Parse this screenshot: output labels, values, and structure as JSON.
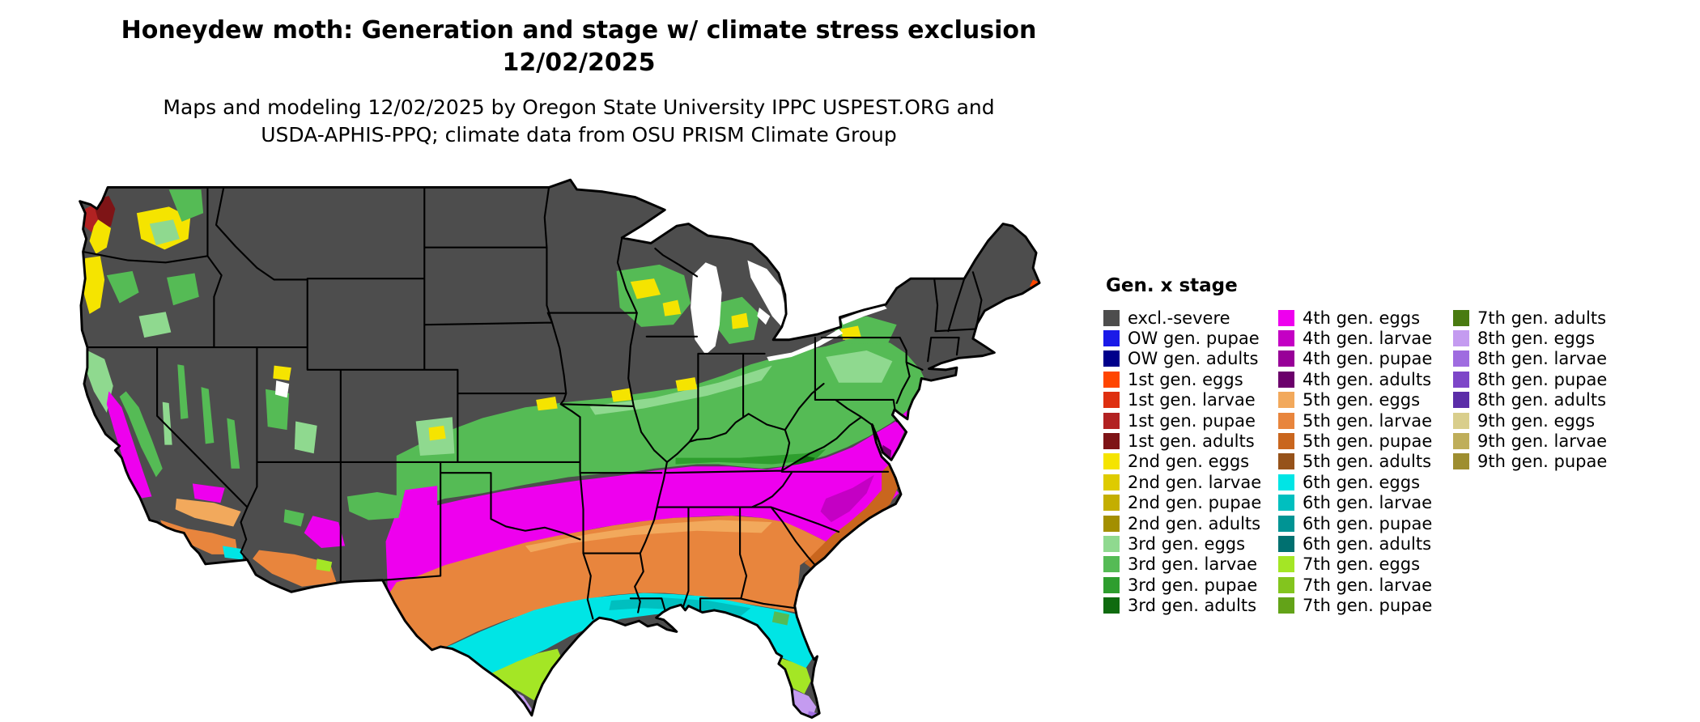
{
  "title": {
    "line1": "Honeydew moth: Generation and stage w/ climate stress exclusion",
    "line2": "12/02/2025"
  },
  "subtitle": {
    "line1": "Maps and modeling 12/02/2025 by Oregon State University IPPC USPEST.ORG and",
    "line2": "USDA-APHIS-PPQ; climate data from OSU PRISM Climate Group"
  },
  "legend": {
    "title": "Gen. x stage",
    "columns": [
      [
        {
          "key": "excl_severe",
          "label": "excl.-severe"
        },
        {
          "key": "ow_pupae",
          "label": "OW gen. pupae"
        },
        {
          "key": "ow_adults",
          "label": "OW gen. adults"
        },
        {
          "key": "gen1_eggs",
          "label": "1st gen. eggs"
        },
        {
          "key": "gen1_larvae",
          "label": "1st gen. larvae"
        },
        {
          "key": "gen1_pupae",
          "label": "1st gen. pupae"
        },
        {
          "key": "gen1_adults",
          "label": "1st gen. adults"
        },
        {
          "key": "gen2_eggs",
          "label": "2nd gen. eggs"
        },
        {
          "key": "gen2_larvae",
          "label": "2nd gen. larvae"
        },
        {
          "key": "gen2_pupae",
          "label": "2nd gen. pupae"
        },
        {
          "key": "gen2_adults",
          "label": "2nd gen. adults"
        },
        {
          "key": "gen3_eggs",
          "label": "3rd gen. eggs"
        },
        {
          "key": "gen3_larvae",
          "label": "3rd gen. larvae"
        },
        {
          "key": "gen3_pupae",
          "label": "3rd gen. pupae"
        },
        {
          "key": "gen3_adults",
          "label": "3rd gen. adults"
        }
      ],
      [
        {
          "key": "gen4_eggs",
          "label": "4th gen. eggs"
        },
        {
          "key": "gen4_larvae",
          "label": "4th gen. larvae"
        },
        {
          "key": "gen4_pupae",
          "label": "4th gen. pupae"
        },
        {
          "key": "gen4_adults",
          "label": "4th gen. adults"
        },
        {
          "key": "gen5_eggs",
          "label": "5th gen. eggs"
        },
        {
          "key": "gen5_larvae",
          "label": "5th gen. larvae"
        },
        {
          "key": "gen5_pupae",
          "label": "5th gen. pupae"
        },
        {
          "key": "gen5_adults",
          "label": "5th gen. adults"
        },
        {
          "key": "gen6_eggs",
          "label": "6th gen. eggs"
        },
        {
          "key": "gen6_larvae",
          "label": "6th gen. larvae"
        },
        {
          "key": "gen6_pupae",
          "label": "6th gen. pupae"
        },
        {
          "key": "gen6_adults",
          "label": "6th gen. adults"
        },
        {
          "key": "gen7_eggs",
          "label": "7th gen. eggs"
        },
        {
          "key": "gen7_larvae",
          "label": "7th gen. larvae"
        },
        {
          "key": "gen7_pupae",
          "label": "7th gen. pupae"
        }
      ],
      [
        {
          "key": "gen7_adults",
          "label": "7th gen. adults"
        },
        {
          "key": "gen8_eggs",
          "label": "8th gen. eggs"
        },
        {
          "key": "gen8_larvae",
          "label": "8th gen. larvae"
        },
        {
          "key": "gen8_pupae",
          "label": "8th gen. pupae"
        },
        {
          "key": "gen8_adults",
          "label": "8th gen. adults"
        },
        {
          "key": "gen9_eggs",
          "label": "9th gen. eggs"
        },
        {
          "key": "gen9_larvae",
          "label": "9th gen. larvae"
        },
        {
          "key": "gen9_pupae",
          "label": "9th gen. pupae"
        }
      ]
    ]
  },
  "palette": {
    "excl_severe": "#4D4D4D",
    "ow_pupae": "#1A1AE8",
    "ow_adults": "#00008B",
    "gen1_eggs": "#FF4500",
    "gen1_larvae": "#DE2F10",
    "gen1_pupae": "#B22222",
    "gen1_adults": "#7E1416",
    "gen2_eggs": "#F5E400",
    "gen2_larvae": "#DECB00",
    "gen2_pupae": "#C4AE00",
    "gen2_adults": "#A38F00",
    "gen3_eggs": "#8FD98F",
    "gen3_larvae": "#55BB55",
    "gen3_pupae": "#2E9E2E",
    "gen3_adults": "#0F6B0F",
    "gen4_eggs": "#EE00EE",
    "gen4_larvae": "#C400C4",
    "gen4_pupae": "#980098",
    "gen4_adults": "#6B006B",
    "gen5_eggs": "#F2A95C",
    "gen5_larvae": "#E8853D",
    "gen5_pupae": "#C9661E",
    "gen5_adults": "#96521A",
    "gen6_eggs": "#00E5E5",
    "gen6_larvae": "#00BFBF",
    "gen6_pupae": "#009494",
    "gen6_adults": "#007070",
    "gen7_eggs": "#A4E625",
    "gen7_larvae": "#83C51E",
    "gen7_pupae": "#63A318",
    "gen7_adults": "#497B10",
    "gen8_eggs": "#C49BF0",
    "gen8_larvae": "#9F6CE0",
    "gen8_pupae": "#7D46C8",
    "gen8_adults": "#5B2DA8",
    "gen9_eggs": "#D9CE8C",
    "gen9_larvae": "#BFAE5A",
    "gen9_pupae": "#9E8E30",
    "water": "#FFFFFF"
  }
}
